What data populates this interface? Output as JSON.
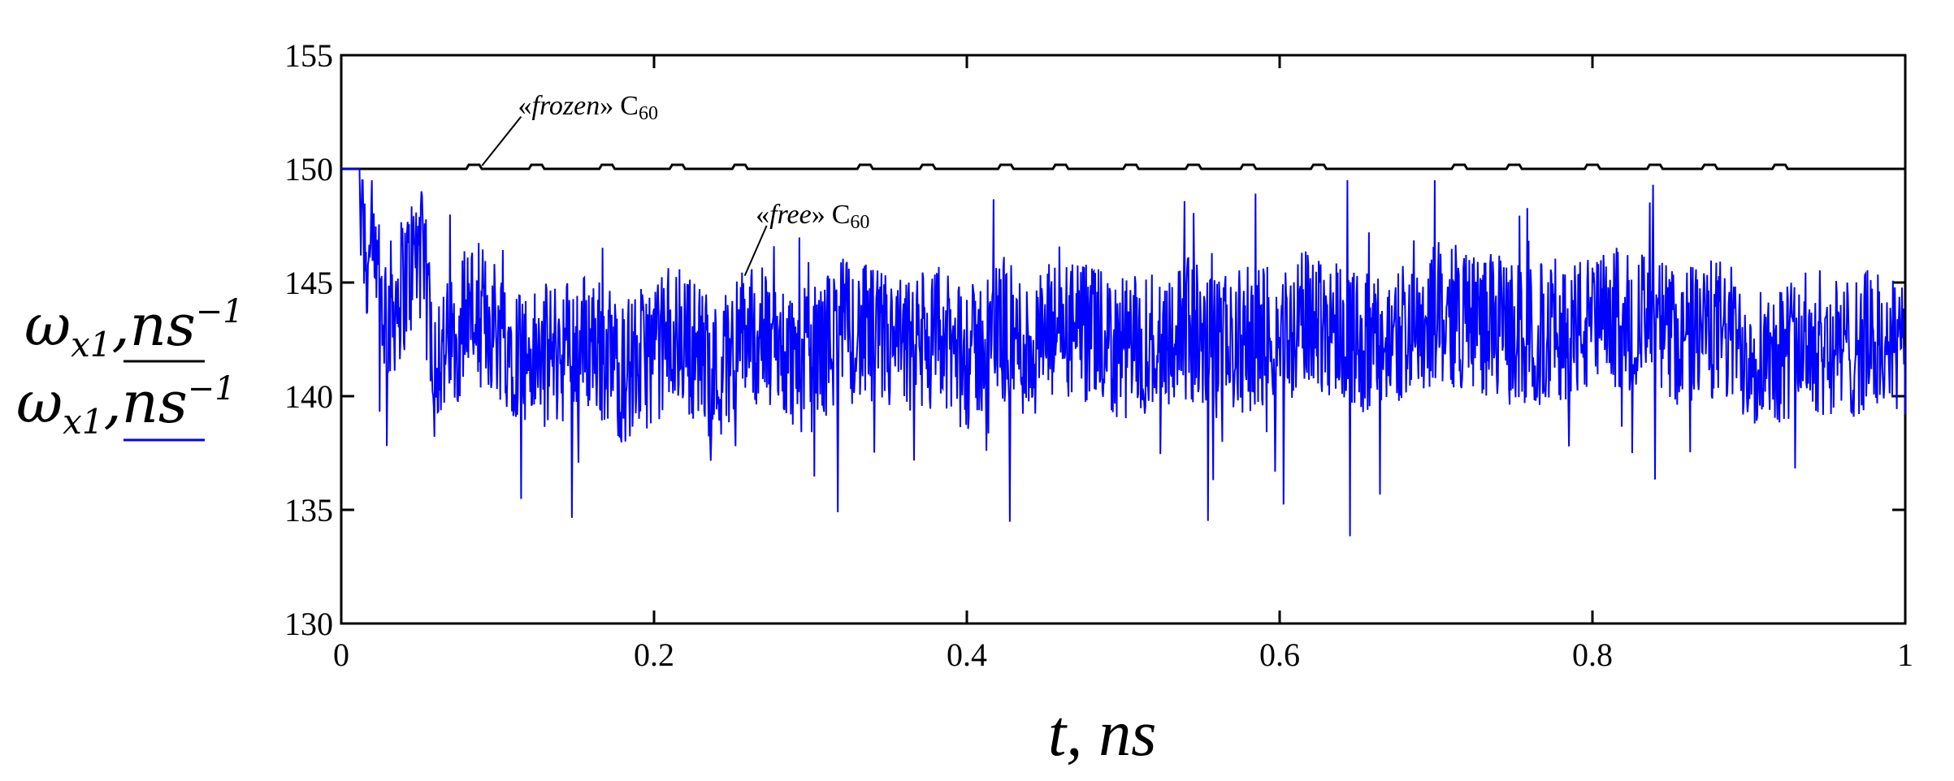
{
  "chart_data": {
    "type": "line",
    "xlabel": "t, ns",
    "ylabel_symbol": "ω",
    "ylabel_subscript": "x1",
    "ylabel_units": ",ns",
    "ylabel_exp": "−1",
    "xlim": [
      0,
      1
    ],
    "ylim": [
      130,
      155
    ],
    "xticks": [
      0,
      0.2,
      0.4,
      0.6,
      0.8,
      1
    ],
    "xtick_labels": [
      "0",
      "0.2",
      "0.4",
      "0.6",
      "0.8",
      "1"
    ],
    "yticks": [
      130,
      135,
      140,
      145,
      150,
      155
    ],
    "ytick_labels": [
      "130",
      "135",
      "140",
      "145",
      "150",
      "155"
    ],
    "grid": false,
    "series": [
      {
        "color": "#000000",
        "style": "dashed-with-small-bumps",
        "x": [
          0,
          0.1,
          0.2,
          0.3,
          0.4,
          0.5,
          0.6,
          0.7,
          0.8,
          0.9,
          1.0
        ],
        "y": [
          150,
          150,
          150,
          150,
          150,
          150,
          150,
          150,
          150,
          150,
          150
        ]
      },
      {
        "color": "#0000ff",
        "style": "noisy",
        "x": [
          0,
          0.01,
          0.02,
          0.03,
          0.04,
          0.05,
          0.06,
          0.07,
          0.08,
          0.1,
          0.12,
          0.14,
          0.16,
          0.18,
          0.2,
          0.22,
          0.24,
          0.26,
          0.28,
          0.3,
          0.32,
          0.34,
          0.36,
          0.38,
          0.4,
          0.42,
          0.44,
          0.46,
          0.48,
          0.5,
          0.52,
          0.54,
          0.56,
          0.58,
          0.6,
          0.62,
          0.64,
          0.66,
          0.68,
          0.7,
          0.72,
          0.74,
          0.76,
          0.78,
          0.8,
          0.82,
          0.84,
          0.86,
          0.88,
          0.9,
          0.92,
          0.94,
          0.96,
          0.98,
          1.0
        ],
        "y": [
          150,
          149.5,
          145,
          143.5,
          145,
          146.5,
          142,
          142,
          144,
          143,
          141.5,
          142,
          142.5,
          141,
          142,
          142.5,
          141,
          143,
          142,
          141.5,
          143,
          142.5,
          142,
          142.5,
          141.5,
          143,
          142,
          143,
          142.5,
          142,
          142.5,
          143,
          142,
          142.5,
          142.5,
          143.5,
          143,
          142,
          143,
          143.5,
          143.5,
          143,
          142.5,
          143,
          143,
          143.5,
          143,
          142.5,
          143,
          142,
          142,
          142.5,
          142,
          142.5,
          142
        ]
      }
    ],
    "annotations": [
      {
        "open": "«",
        "text": "frozen",
        "close": "»",
        "species": "C",
        "sub": "60"
      },
      {
        "open": "«",
        "text": "free",
        "close": "»",
        "species": "C",
        "sub": "60"
      }
    ]
  }
}
